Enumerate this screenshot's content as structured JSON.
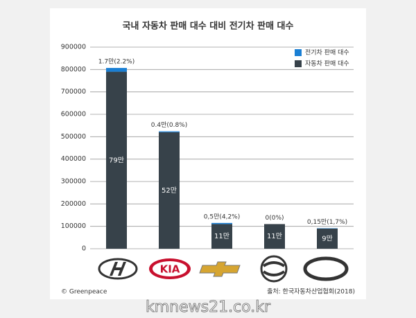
{
  "chart_data": {
    "type": "stacked-bar",
    "title": "국내 자동차 판매 대수 대비 전기차 판매 대수",
    "categories": [
      null,
      "KIA",
      null,
      null,
      null
    ],
    "series": [
      {
        "name": "자동차 판매 대수",
        "color": "#37424a",
        "values": [
          790000,
          520000,
          110000,
          110000,
          90000
        ],
        "value_labels": [
          "79만",
          "52만",
          "11만",
          "11만",
          "9만"
        ]
      },
      {
        "name": "전기차 판매 대수",
        "color": "#1a7fd4",
        "values": [
          17000,
          4000,
          5000,
          0,
          1500
        ],
        "value_labels": [
          "1.7만(2.2%)",
          "0.4만(0.8%)",
          "0,5만(4,2%)",
          "0(0%)",
          "0,15만(1,7%)"
        ]
      }
    ],
    "ylim": [
      0,
      900000
    ],
    "yticks": [
      0,
      100000,
      200000,
      300000,
      400000,
      500000,
      600000,
      700000,
      800000,
      900000
    ],
    "grid": true,
    "legend": "top-right",
    "credit": "© Greenpeace",
    "source": "출처: 한국자동차산업협회(2018)",
    "watermark": "kmnews21.co.kr"
  }
}
